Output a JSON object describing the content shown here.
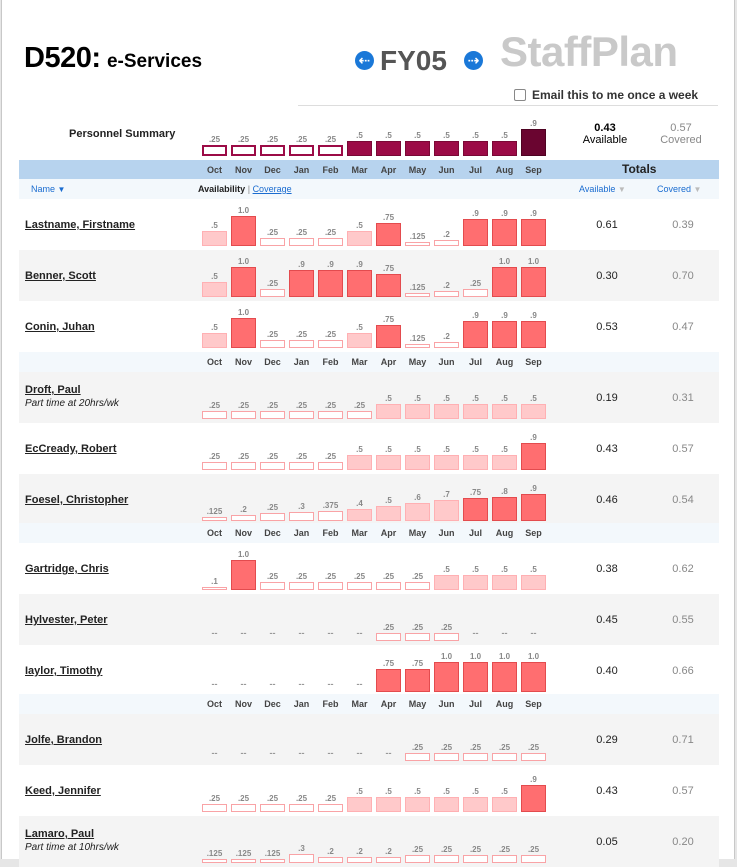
{
  "header": {
    "dept_code": "D520:",
    "dept_name": "e-Services",
    "fiscal_year": "FY05",
    "app_name": "StaffPlan",
    "prev_icon": "arrow-left-icon",
    "next_icon": "arrow-right-icon",
    "email_label": "Email this to me once a week"
  },
  "months": [
    "Oct",
    "Nov",
    "Dec",
    "Jan",
    "Feb",
    "Mar",
    "Apr",
    "May",
    "Jun",
    "Jul",
    "Aug",
    "Sep"
  ],
  "summary": {
    "label": "Personnel Summary",
    "values": [
      ".25",
      ".25",
      ".25",
      ".25",
      ".25",
      ".5",
      ".5",
      ".5",
      ".5",
      ".5",
      ".5",
      ".9"
    ],
    "available_value": "0.43",
    "available_label": "Available",
    "covered_value": "0.57",
    "covered_label": "Covered"
  },
  "table": {
    "totals_label": "Totals",
    "name_col": "Name",
    "availability_label": "Availability",
    "coverage_link": "Coverage",
    "available_col": "Available",
    "covered_col": "Covered"
  },
  "colors": {
    "solid_bar": "#ff6e70",
    "light_bar": "#ffc9ca",
    "summary_bar": "#9c0b46",
    "header_band": "#b7d3ee",
    "link": "#1a6cd0"
  },
  "people": [
    {
      "name": "Lastname, Firstname",
      "sub": "",
      "cells": [
        ".5",
        "1.0",
        ".25",
        ".25",
        ".25",
        ".5",
        ".75",
        ".125",
        ".2",
        ".9",
        ".9",
        ".9"
      ],
      "available": "0.61",
      "covered": "0.39"
    },
    {
      "name": "Benner, Scott",
      "sub": "",
      "cells": [
        ".5",
        "1.0",
        ".25",
        ".9",
        ".9",
        ".9",
        ".75",
        ".125",
        ".2",
        ".25",
        "1.0",
        "1.0"
      ],
      "available": "0.30",
      "covered": "0.70"
    },
    {
      "name": "Conin, Juhan",
      "sub": "",
      "cells": [
        ".5",
        "1.0",
        ".25",
        ".25",
        ".25",
        ".5",
        ".75",
        ".125",
        ".2",
        ".9",
        ".9",
        ".9"
      ],
      "available": "0.53",
      "covered": "0.47"
    },
    {
      "name": "Droft, Paul",
      "sub": "Part time at 20hrs/wk",
      "cells": [
        ".25",
        ".25",
        ".25",
        ".25",
        ".25",
        ".25",
        ".5",
        ".5",
        ".5",
        ".5",
        ".5",
        ".5"
      ],
      "available": "0.19",
      "covered": "0.31"
    },
    {
      "name": "EcCready, Robert",
      "sub": "",
      "cells": [
        ".25",
        ".25",
        ".25",
        ".25",
        ".25",
        ".5",
        ".5",
        ".5",
        ".5",
        ".5",
        ".5",
        ".9"
      ],
      "available": "0.43",
      "covered": "0.57"
    },
    {
      "name": "Foesel, Christopher",
      "sub": "",
      "cells": [
        ".125",
        ".2",
        ".25",
        ".3",
        ".375",
        ".4",
        ".5",
        ".6",
        ".7",
        ".75",
        ".8",
        ".9"
      ],
      "available": "0.46",
      "covered": "0.54"
    },
    {
      "name": "Gartridge, Chris",
      "sub": "",
      "cells": [
        ".1",
        "1.0",
        ".25",
        ".25",
        ".25",
        ".25",
        ".25",
        ".25",
        ".5",
        ".5",
        ".5",
        ".5"
      ],
      "available": "0.38",
      "covered": "0.62"
    },
    {
      "name": "Hylvester, Peter",
      "sub": "",
      "cells": [
        "--",
        "--",
        "--",
        "--",
        "--",
        "--",
        ".25",
        ".25",
        ".25",
        "--",
        "--",
        "--"
      ],
      "available": "0.45",
      "covered": "0.55"
    },
    {
      "name": "Iaylor, Timothy",
      "sub": "",
      "cells": [
        "--",
        "--",
        "--",
        "--",
        "--",
        "--",
        ".75",
        ".75",
        "1.0",
        "1.0",
        "1.0",
        "1.0"
      ],
      "available": "0.40",
      "covered": "0.66"
    },
    {
      "name": "Jolfe, Brandon",
      "sub": "",
      "cells": [
        "--",
        "--",
        "--",
        "--",
        "--",
        "--",
        "--",
        ".25",
        ".25",
        ".25",
        ".25",
        ".25"
      ],
      "available": "0.29",
      "covered": "0.71"
    },
    {
      "name": "Keed, Jennifer",
      "sub": "",
      "cells": [
        ".25",
        ".25",
        ".25",
        ".25",
        ".25",
        ".5",
        ".5",
        ".5",
        ".5",
        ".5",
        ".5",
        ".9"
      ],
      "available": "0.43",
      "covered": "0.57"
    },
    {
      "name": "Lamaro, Paul",
      "sub": "Part time at 10hrs/wk",
      "cells": [
        ".125",
        ".125",
        ".125",
        ".3",
        ".2",
        ".2",
        ".2",
        ".25",
        ".25",
        ".25",
        ".25",
        ".25"
      ],
      "available": "0.05",
      "covered": "0.20"
    }
  ]
}
